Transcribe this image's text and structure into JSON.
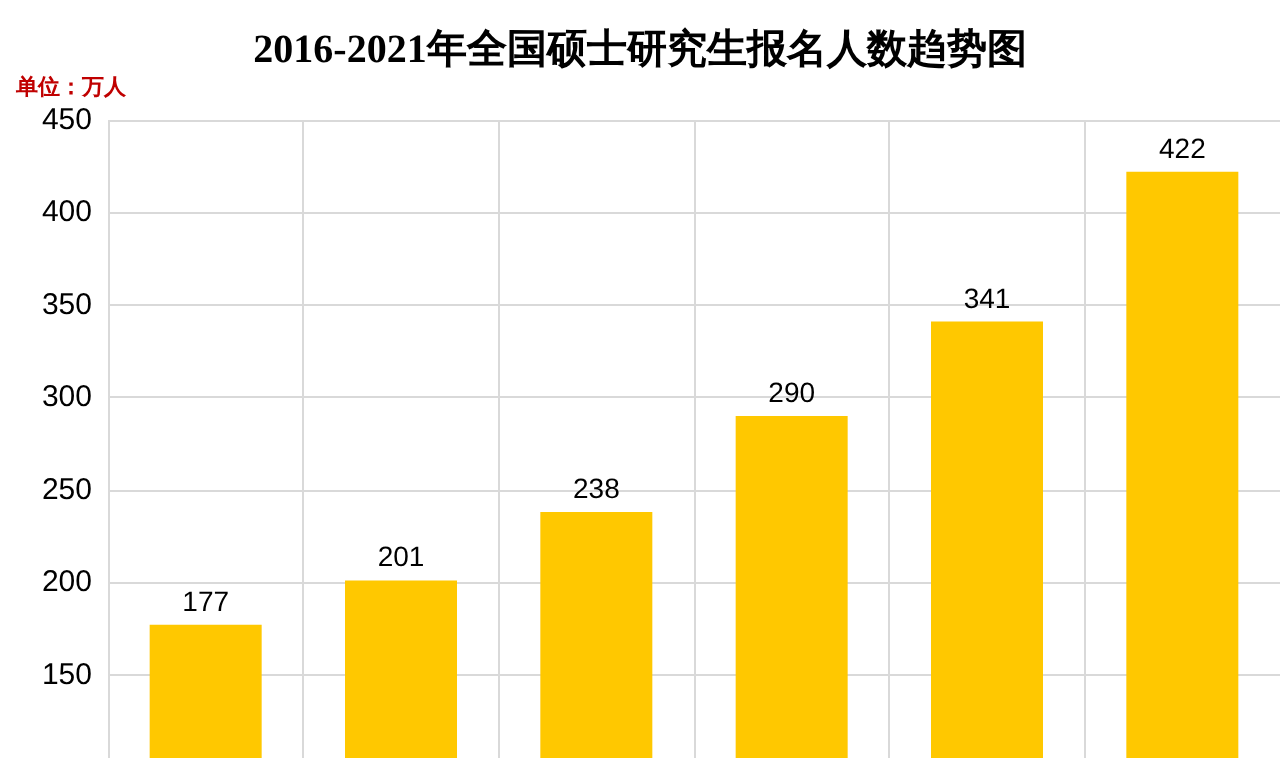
{
  "chart_data": {
    "type": "bar",
    "title": "2016-2021年全国硕士研究生报名人数趋势图",
    "ylabel": "单位：万人",
    "categories": [
      null,
      null,
      null,
      null,
      null,
      null
    ],
    "values": [
      177,
      201,
      238,
      290,
      341,
      422
    ],
    "color": "#ffc800",
    "ylim": [
      105,
      450
    ],
    "yticks": [
      150,
      200,
      250,
      300,
      350,
      400,
      450
    ],
    "grid": true,
    "data_labels": true
  }
}
